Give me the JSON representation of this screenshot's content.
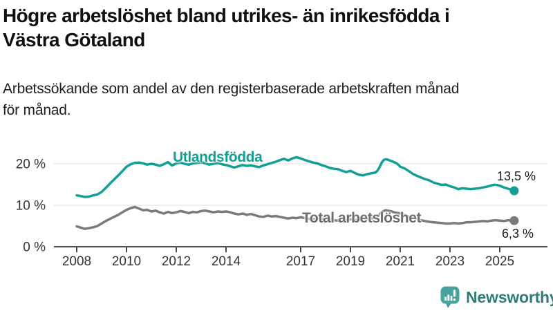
{
  "header": {
    "title_line1": "Högre arbetslöshet bland utrikes- än inrikesfödda i",
    "title_line2": "Västra Götaland",
    "subtitle_line1": "Arbetssökande som andel av den registerbaserade arbetskraften månad",
    "subtitle_line2": "för månad."
  },
  "chart_data": {
    "type": "line",
    "title": "Högre arbetslöshet bland utrikes- än inrikesfödda i Västra Götaland",
    "subtitle": "Arbetssökande som andel av den registerbaserade arbetskraften månad för månad.",
    "xlabel": "",
    "ylabel": "",
    "x_base": 2008,
    "x_range": [
      2007.1,
      2026.9
    ],
    "ylim": [
      0,
      24
    ],
    "grid": "horizontal",
    "grid_color": "#dcdcdc",
    "axis_color": "#4d4d4d",
    "tick_label_color": "#333333",
    "legend_position": "inline-labels",
    "y_ticks": [
      {
        "value": 0,
        "label": "0 %"
      },
      {
        "value": 10,
        "label": "10 %"
      },
      {
        "value": 20,
        "label": "20 %"
      }
    ],
    "x_ticks": [
      {
        "value": 2008,
        "label": "2008"
      },
      {
        "value": 2010,
        "label": "2010"
      },
      {
        "value": 2012,
        "label": "2012"
      },
      {
        "value": 2014,
        "label": "2014"
      },
      {
        "value": 2017,
        "label": "2017"
      },
      {
        "value": 2019,
        "label": "2019"
      },
      {
        "value": 2021,
        "label": "2021"
      },
      {
        "value": 2023,
        "label": "2023"
      },
      {
        "value": 2025,
        "label": "2025"
      }
    ],
    "series": [
      {
        "name": "Utlandsfödda",
        "color": "#13a094",
        "end_label": "13,5 %",
        "end_value": 13.5,
        "x": [
          2008.0,
          2008.17,
          2008.33,
          2008.5,
          2008.67,
          2008.83,
          2009.0,
          2009.17,
          2009.33,
          2009.5,
          2009.67,
          2009.83,
          2010.0,
          2010.17,
          2010.33,
          2010.5,
          2010.67,
          2010.83,
          2011.0,
          2011.17,
          2011.33,
          2011.5,
          2011.67,
          2011.83,
          2012.0,
          2012.17,
          2012.33,
          2012.5,
          2012.67,
          2012.83,
          2013.0,
          2013.17,
          2013.33,
          2013.5,
          2013.67,
          2013.83,
          2014.0,
          2014.17,
          2014.33,
          2014.5,
          2014.67,
          2014.83,
          2015.0,
          2015.17,
          2015.33,
          2015.5,
          2015.67,
          2015.83,
          2016.0,
          2016.17,
          2016.33,
          2016.5,
          2016.67,
          2016.83,
          2017.0,
          2017.17,
          2017.33,
          2017.5,
          2017.67,
          2017.83,
          2018.0,
          2018.17,
          2018.33,
          2018.5,
          2018.67,
          2018.83,
          2019.0,
          2019.17,
          2019.33,
          2019.5,
          2019.67,
          2019.83,
          2020.0,
          2020.08,
          2020.17,
          2020.25,
          2020.33,
          2020.42,
          2020.5,
          2020.58,
          2020.67,
          2020.75,
          2020.83,
          2020.92,
          2021.0,
          2021.17,
          2021.33,
          2021.5,
          2021.67,
          2021.83,
          2022.0,
          2022.17,
          2022.33,
          2022.5,
          2022.67,
          2022.83,
          2023.0,
          2023.17,
          2023.33,
          2023.5,
          2023.67,
          2023.83,
          2024.0,
          2024.17,
          2024.33,
          2024.5,
          2024.67,
          2024.83,
          2025.0,
          2025.17,
          2025.33,
          2025.5,
          2025.58
        ],
        "values": [
          12.4,
          12.2,
          12.0,
          12.1,
          12.4,
          12.6,
          13.2,
          14.2,
          15.2,
          16.2,
          17.2,
          18.2,
          19.3,
          19.9,
          20.2,
          20.3,
          20.1,
          19.8,
          20.0,
          19.8,
          19.5,
          19.9,
          20.4,
          19.6,
          20.1,
          20.3,
          20.0,
          19.8,
          20.1,
          20.2,
          20.4,
          20.1,
          19.8,
          20.0,
          20.2,
          19.9,
          19.7,
          19.4,
          19.1,
          19.4,
          19.7,
          19.5,
          19.6,
          19.4,
          19.2,
          19.6,
          19.9,
          20.2,
          20.5,
          20.9,
          21.2,
          20.8,
          21.3,
          21.6,
          21.3,
          20.9,
          20.6,
          20.3,
          20.1,
          19.7,
          19.4,
          19.0,
          18.8,
          18.7,
          18.3,
          18.0,
          18.3,
          17.8,
          17.4,
          17.2,
          17.5,
          17.7,
          17.9,
          18.3,
          19.2,
          20.2,
          20.9,
          21.1,
          21.0,
          20.8,
          20.6,
          20.4,
          20.2,
          19.8,
          19.3,
          18.9,
          18.3,
          17.6,
          17.1,
          16.7,
          16.3,
          16.0,
          15.5,
          15.2,
          14.9,
          15.0,
          14.6,
          14.3,
          13.9,
          14.1,
          14.0,
          13.9,
          14.0,
          14.1,
          14.3,
          14.5,
          14.8,
          15.0,
          14.7,
          14.3,
          14.0,
          13.7,
          13.5
        ]
      },
      {
        "name": "Total arbetslöshet",
        "color": "#7b7b7b",
        "end_label": "6,3 %",
        "end_value": 6.3,
        "x": [
          2008.0,
          2008.17,
          2008.33,
          2008.5,
          2008.67,
          2008.83,
          2009.0,
          2009.17,
          2009.33,
          2009.5,
          2009.67,
          2009.83,
          2010.0,
          2010.17,
          2010.33,
          2010.5,
          2010.67,
          2010.83,
          2011.0,
          2011.17,
          2011.33,
          2011.5,
          2011.67,
          2011.83,
          2012.0,
          2012.17,
          2012.33,
          2012.5,
          2012.67,
          2012.83,
          2013.0,
          2013.17,
          2013.33,
          2013.5,
          2013.67,
          2013.83,
          2014.0,
          2014.17,
          2014.33,
          2014.5,
          2014.67,
          2014.83,
          2015.0,
          2015.17,
          2015.33,
          2015.5,
          2015.67,
          2015.83,
          2016.0,
          2016.17,
          2016.33,
          2016.5,
          2016.67,
          2016.83,
          2017.0,
          2017.17,
          2017.33,
          2017.5,
          2017.67,
          2017.83,
          2018.0,
          2018.17,
          2018.33,
          2018.5,
          2018.67,
          2018.83,
          2019.0,
          2019.17,
          2019.33,
          2019.5,
          2019.67,
          2019.83,
          2020.0,
          2020.08,
          2020.17,
          2020.25,
          2020.33,
          2020.42,
          2020.5,
          2020.58,
          2020.67,
          2020.75,
          2020.83,
          2020.92,
          2021.0,
          2021.17,
          2021.33,
          2021.5,
          2021.67,
          2021.83,
          2022.0,
          2022.17,
          2022.33,
          2022.5,
          2022.67,
          2022.83,
          2023.0,
          2023.17,
          2023.33,
          2023.5,
          2023.67,
          2023.83,
          2024.0,
          2024.17,
          2024.33,
          2024.5,
          2024.67,
          2024.83,
          2025.0,
          2025.17,
          2025.33,
          2025.5,
          2025.58
        ],
        "values": [
          4.9,
          4.6,
          4.3,
          4.5,
          4.7,
          5.0,
          5.6,
          6.2,
          6.7,
          7.2,
          7.7,
          8.3,
          8.9,
          9.3,
          9.6,
          9.2,
          8.8,
          8.9,
          8.5,
          8.7,
          8.3,
          8.0,
          8.4,
          8.1,
          8.3,
          8.6,
          8.4,
          8.1,
          8.4,
          8.3,
          8.6,
          8.7,
          8.5,
          8.3,
          8.5,
          8.4,
          8.5,
          8.3,
          8.0,
          7.8,
          8.0,
          7.7,
          7.9,
          7.6,
          7.3,
          7.2,
          7.5,
          7.3,
          7.4,
          7.2,
          7.0,
          6.8,
          7.0,
          6.9,
          7.1,
          6.9,
          6.7,
          6.6,
          6.8,
          6.7,
          6.8,
          6.6,
          6.4,
          6.3,
          6.5,
          6.4,
          6.6,
          6.5,
          6.4,
          6.5,
          6.7,
          6.8,
          7.0,
          7.3,
          7.8,
          8.3,
          8.6,
          8.8,
          8.7,
          8.6,
          8.5,
          8.3,
          8.2,
          8.1,
          8.0,
          7.7,
          7.3,
          7.0,
          6.7,
          6.4,
          6.2,
          6.0,
          5.9,
          5.8,
          5.7,
          5.6,
          5.6,
          5.7,
          5.6,
          5.7,
          5.9,
          5.9,
          6.0,
          6.1,
          6.2,
          6.1,
          6.3,
          6.4,
          6.3,
          6.2,
          6.4,
          6.3,
          6.3
        ]
      }
    ]
  },
  "footer": {
    "brand": "Newsworthy",
    "brand_icon": "newsworthy-bubble-barchart-icon",
    "brand_icon_color": "#48a39d",
    "brand_text_color": "#2e7d79"
  }
}
